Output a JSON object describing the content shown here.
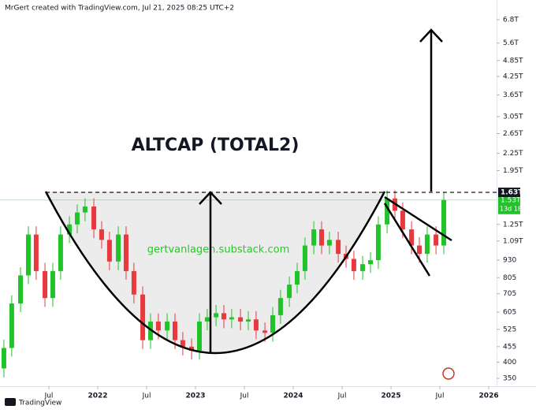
{
  "header": "MrGert created with TradingView.com, Jul 21, 2025 08:25 UTC+2",
  "footer": "TradingView",
  "chart_data": {
    "type": "candlestick",
    "title": "ALTCAP (TOTAL2)",
    "annotation": "gertvanlagen.substack.com",
    "log_scale": true,
    "up_color": "#22c32a",
    "down_color": "#e8393f",
    "x": [
      2021.04,
      2021.12,
      2021.21,
      2021.29,
      2021.37,
      2021.46,
      2021.54,
      2021.62,
      2021.71,
      2021.79,
      2021.87,
      2021.96,
      2022.04,
      2022.12,
      2022.21,
      2022.29,
      2022.37,
      2022.46,
      2022.54,
      2022.62,
      2022.71,
      2022.79,
      2022.87,
      2022.96,
      2023.04,
      2023.12,
      2023.21,
      2023.29,
      2023.37,
      2023.46,
      2023.54,
      2023.62,
      2023.71,
      2023.79,
      2023.87,
      2023.96,
      2024.04,
      2024.12,
      2024.21,
      2024.29,
      2024.37,
      2024.46,
      2024.54,
      2024.62,
      2024.71,
      2024.79,
      2024.87,
      2024.96,
      2025.04,
      2025.12,
      2025.21,
      2025.29,
      2025.37,
      2025.46,
      2025.54
    ],
    "open": [
      380,
      450,
      650,
      820,
      1150,
      850,
      680,
      850,
      1150,
      1250,
      1380,
      1450,
      1200,
      1100,
      920,
      1150,
      850,
      700,
      480,
      560,
      520,
      560,
      480,
      455,
      440,
      560,
      580,
      600,
      570,
      580,
      560,
      570,
      520,
      510,
      590,
      680,
      760,
      850,
      1050,
      1200,
      1050,
      1100,
      980,
      940,
      850,
      900,
      930,
      1250,
      1550,
      1400,
      1200,
      1050,
      980,
      1150,
      1050
    ],
    "high": [
      482,
      696,
      877,
      1231,
      1231,
      910,
      910,
      1231,
      1338,
      1477,
      1552,
      1552,
      1284,
      1177,
      1231,
      1231,
      910,
      749,
      599,
      599,
      599,
      599,
      514,
      487,
      599,
      621,
      642,
      642,
      621,
      621,
      610,
      610,
      556,
      631,
      728,
      813,
      910,
      1124,
      1284,
      1284,
      1177,
      1177,
      1049,
      1006,
      963,
      995,
      1338,
      1659,
      1659,
      1498,
      1284,
      1124,
      1231,
      1231,
      1637
    ],
    "low": [
      353,
      419,
      605,
      763,
      791,
      632,
      632,
      791,
      1070,
      1163,
      1283,
      1116,
      1023,
      856,
      856,
      791,
      651,
      446,
      446,
      484,
      484,
      446,
      423,
      409,
      409,
      521,
      539,
      530,
      530,
      521,
      521,
      484,
      474,
      474,
      549,
      632,
      707,
      791,
      977,
      977,
      977,
      911,
      874,
      791,
      791,
      837,
      865,
      1163,
      1302,
      1116,
      977,
      911,
      911,
      977,
      977
    ],
    "close": [
      450,
      650,
      820,
      1150,
      850,
      680,
      850,
      1150,
      1250,
      1380,
      1450,
      1200,
      1100,
      920,
      1150,
      850,
      700,
      480,
      560,
      520,
      560,
      480,
      455,
      440,
      560,
      580,
      600,
      570,
      580,
      560,
      570,
      520,
      510,
      590,
      680,
      760,
      850,
      1050,
      1200,
      1050,
      1100,
      980,
      940,
      850,
      900,
      930,
      1250,
      1550,
      1400,
      1200,
      1050,
      980,
      1150,
      1050,
      1530
    ],
    "xlim": [
      2021.0,
      2026.08
    ],
    "xticks": [
      {
        "value": 2021.5,
        "label": "Jul"
      },
      2022,
      {
        "value": 2022.5,
        "label": "Jul"
      },
      2023,
      {
        "value": 2023.5,
        "label": "Jul"
      },
      2024,
      {
        "value": 2024.5,
        "label": "Jul"
      },
      2025,
      {
        "value": 2025.5,
        "label": "Jul"
      },
      2026
    ],
    "ylim": [
      328,
      8000
    ],
    "yticks": [
      {
        "value": 6800,
        "label": "6.8T"
      },
      {
        "value": 5600,
        "label": "5.6T"
      },
      {
        "value": 4850,
        "label": "4.85T"
      },
      {
        "value": 4250,
        "label": "4.25T"
      },
      {
        "value": 3650,
        "label": "3.65T"
      },
      {
        "value": 3050,
        "label": "3.05T"
      },
      {
        "value": 2650,
        "label": "2.65T"
      },
      {
        "value": 2250,
        "label": "2.25T"
      },
      {
        "value": 1950,
        "label": "1.95T"
      },
      {
        "value": 1250,
        "label": "1.25T"
      },
      {
        "value": 1090,
        "label": "1.09T"
      },
      930,
      805,
      705,
      605,
      525,
      455,
      400,
      350
    ],
    "ytick_suffix_note": null,
    "resistance": {
      "value": 1630,
      "label": "1.63T"
    },
    "last_price": {
      "value": 1530,
      "label": "1.53T",
      "countdown": "13d 18h"
    }
  }
}
